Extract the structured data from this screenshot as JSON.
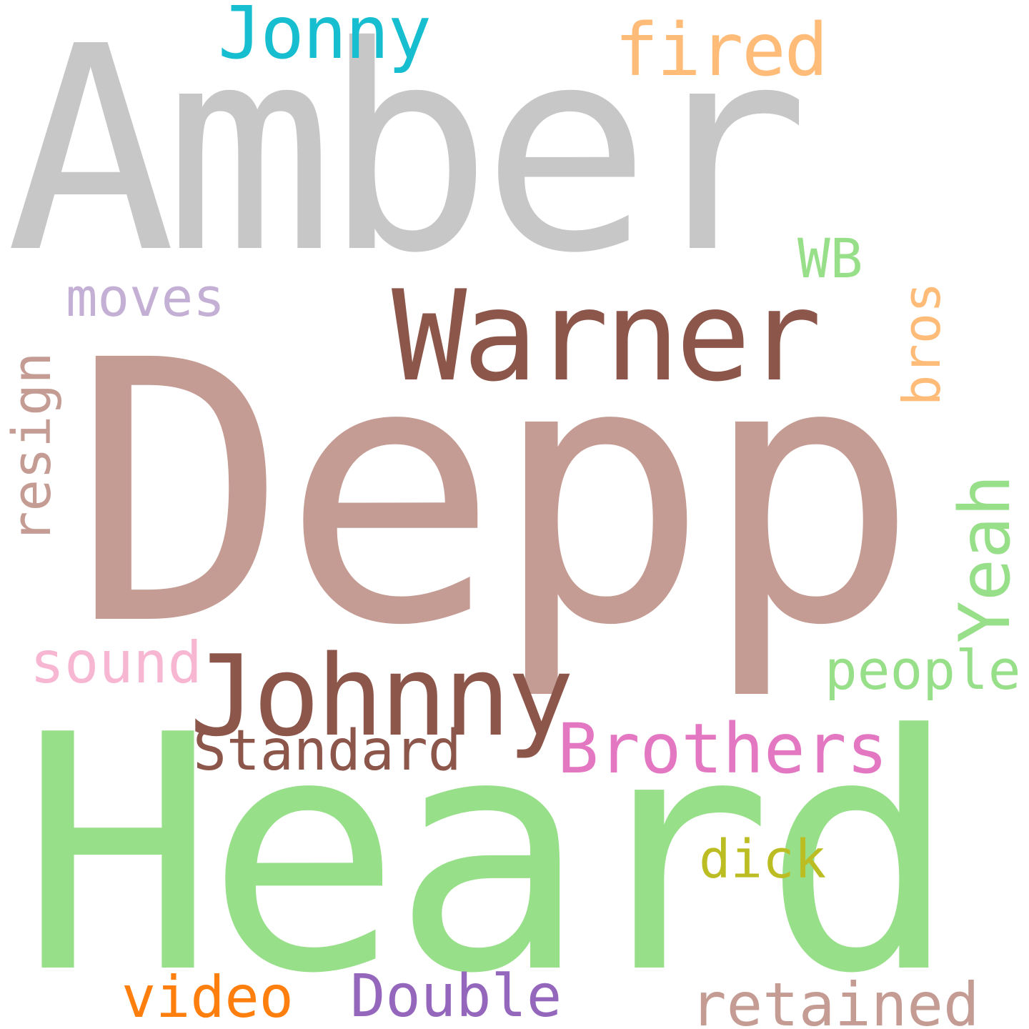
{
  "word_cloud": {
    "background": "#ffffff",
    "words": [
      {
        "id": "amber",
        "text": "Amber",
        "color": "#c7c7c7",
        "orientation": "horizontal"
      },
      {
        "id": "depp",
        "text": "Depp",
        "color": "#c49c94",
        "orientation": "horizontal"
      },
      {
        "id": "heard",
        "text": "Heard",
        "color": "#98df8a",
        "orientation": "horizontal"
      },
      {
        "id": "warner",
        "text": "Warner",
        "color": "#8c564b",
        "orientation": "horizontal"
      },
      {
        "id": "johnny",
        "text": "Johnny",
        "color": "#8c564b",
        "orientation": "horizontal"
      },
      {
        "id": "jonny",
        "text": "Jonny",
        "color": "#17becf",
        "orientation": "horizontal"
      },
      {
        "id": "fired",
        "text": "fired",
        "color": "#ffbb78",
        "orientation": "horizontal"
      },
      {
        "id": "wb",
        "text": "WB",
        "color": "#98df8a",
        "orientation": "horizontal"
      },
      {
        "id": "moves",
        "text": "moves",
        "color": "#c5b0d5",
        "orientation": "horizontal"
      },
      {
        "id": "bros",
        "text": "bros",
        "color": "#ffbb78",
        "orientation": "vertical"
      },
      {
        "id": "resign",
        "text": "resign",
        "color": "#c49c94",
        "orientation": "vertical"
      },
      {
        "id": "yeah",
        "text": "Yeah",
        "color": "#98df8a",
        "orientation": "vertical"
      },
      {
        "id": "sound",
        "text": "sound",
        "color": "#f7b6d2",
        "orientation": "horizontal"
      },
      {
        "id": "people",
        "text": "people",
        "color": "#98df8a",
        "orientation": "horizontal"
      },
      {
        "id": "brothers",
        "text": "Brothers",
        "color": "#e377c2",
        "orientation": "horizontal"
      },
      {
        "id": "standard",
        "text": "Standard",
        "color": "#8c564b",
        "orientation": "horizontal"
      },
      {
        "id": "dick",
        "text": "dick",
        "color": "#bcbd22",
        "orientation": "horizontal"
      },
      {
        "id": "video",
        "text": "video",
        "color": "#ff7f0e",
        "orientation": "horizontal"
      },
      {
        "id": "double",
        "text": "Double",
        "color": "#9467bd",
        "orientation": "horizontal"
      },
      {
        "id": "retained",
        "text": "retained",
        "color": "#c49c94",
        "orientation": "horizontal"
      }
    ]
  }
}
